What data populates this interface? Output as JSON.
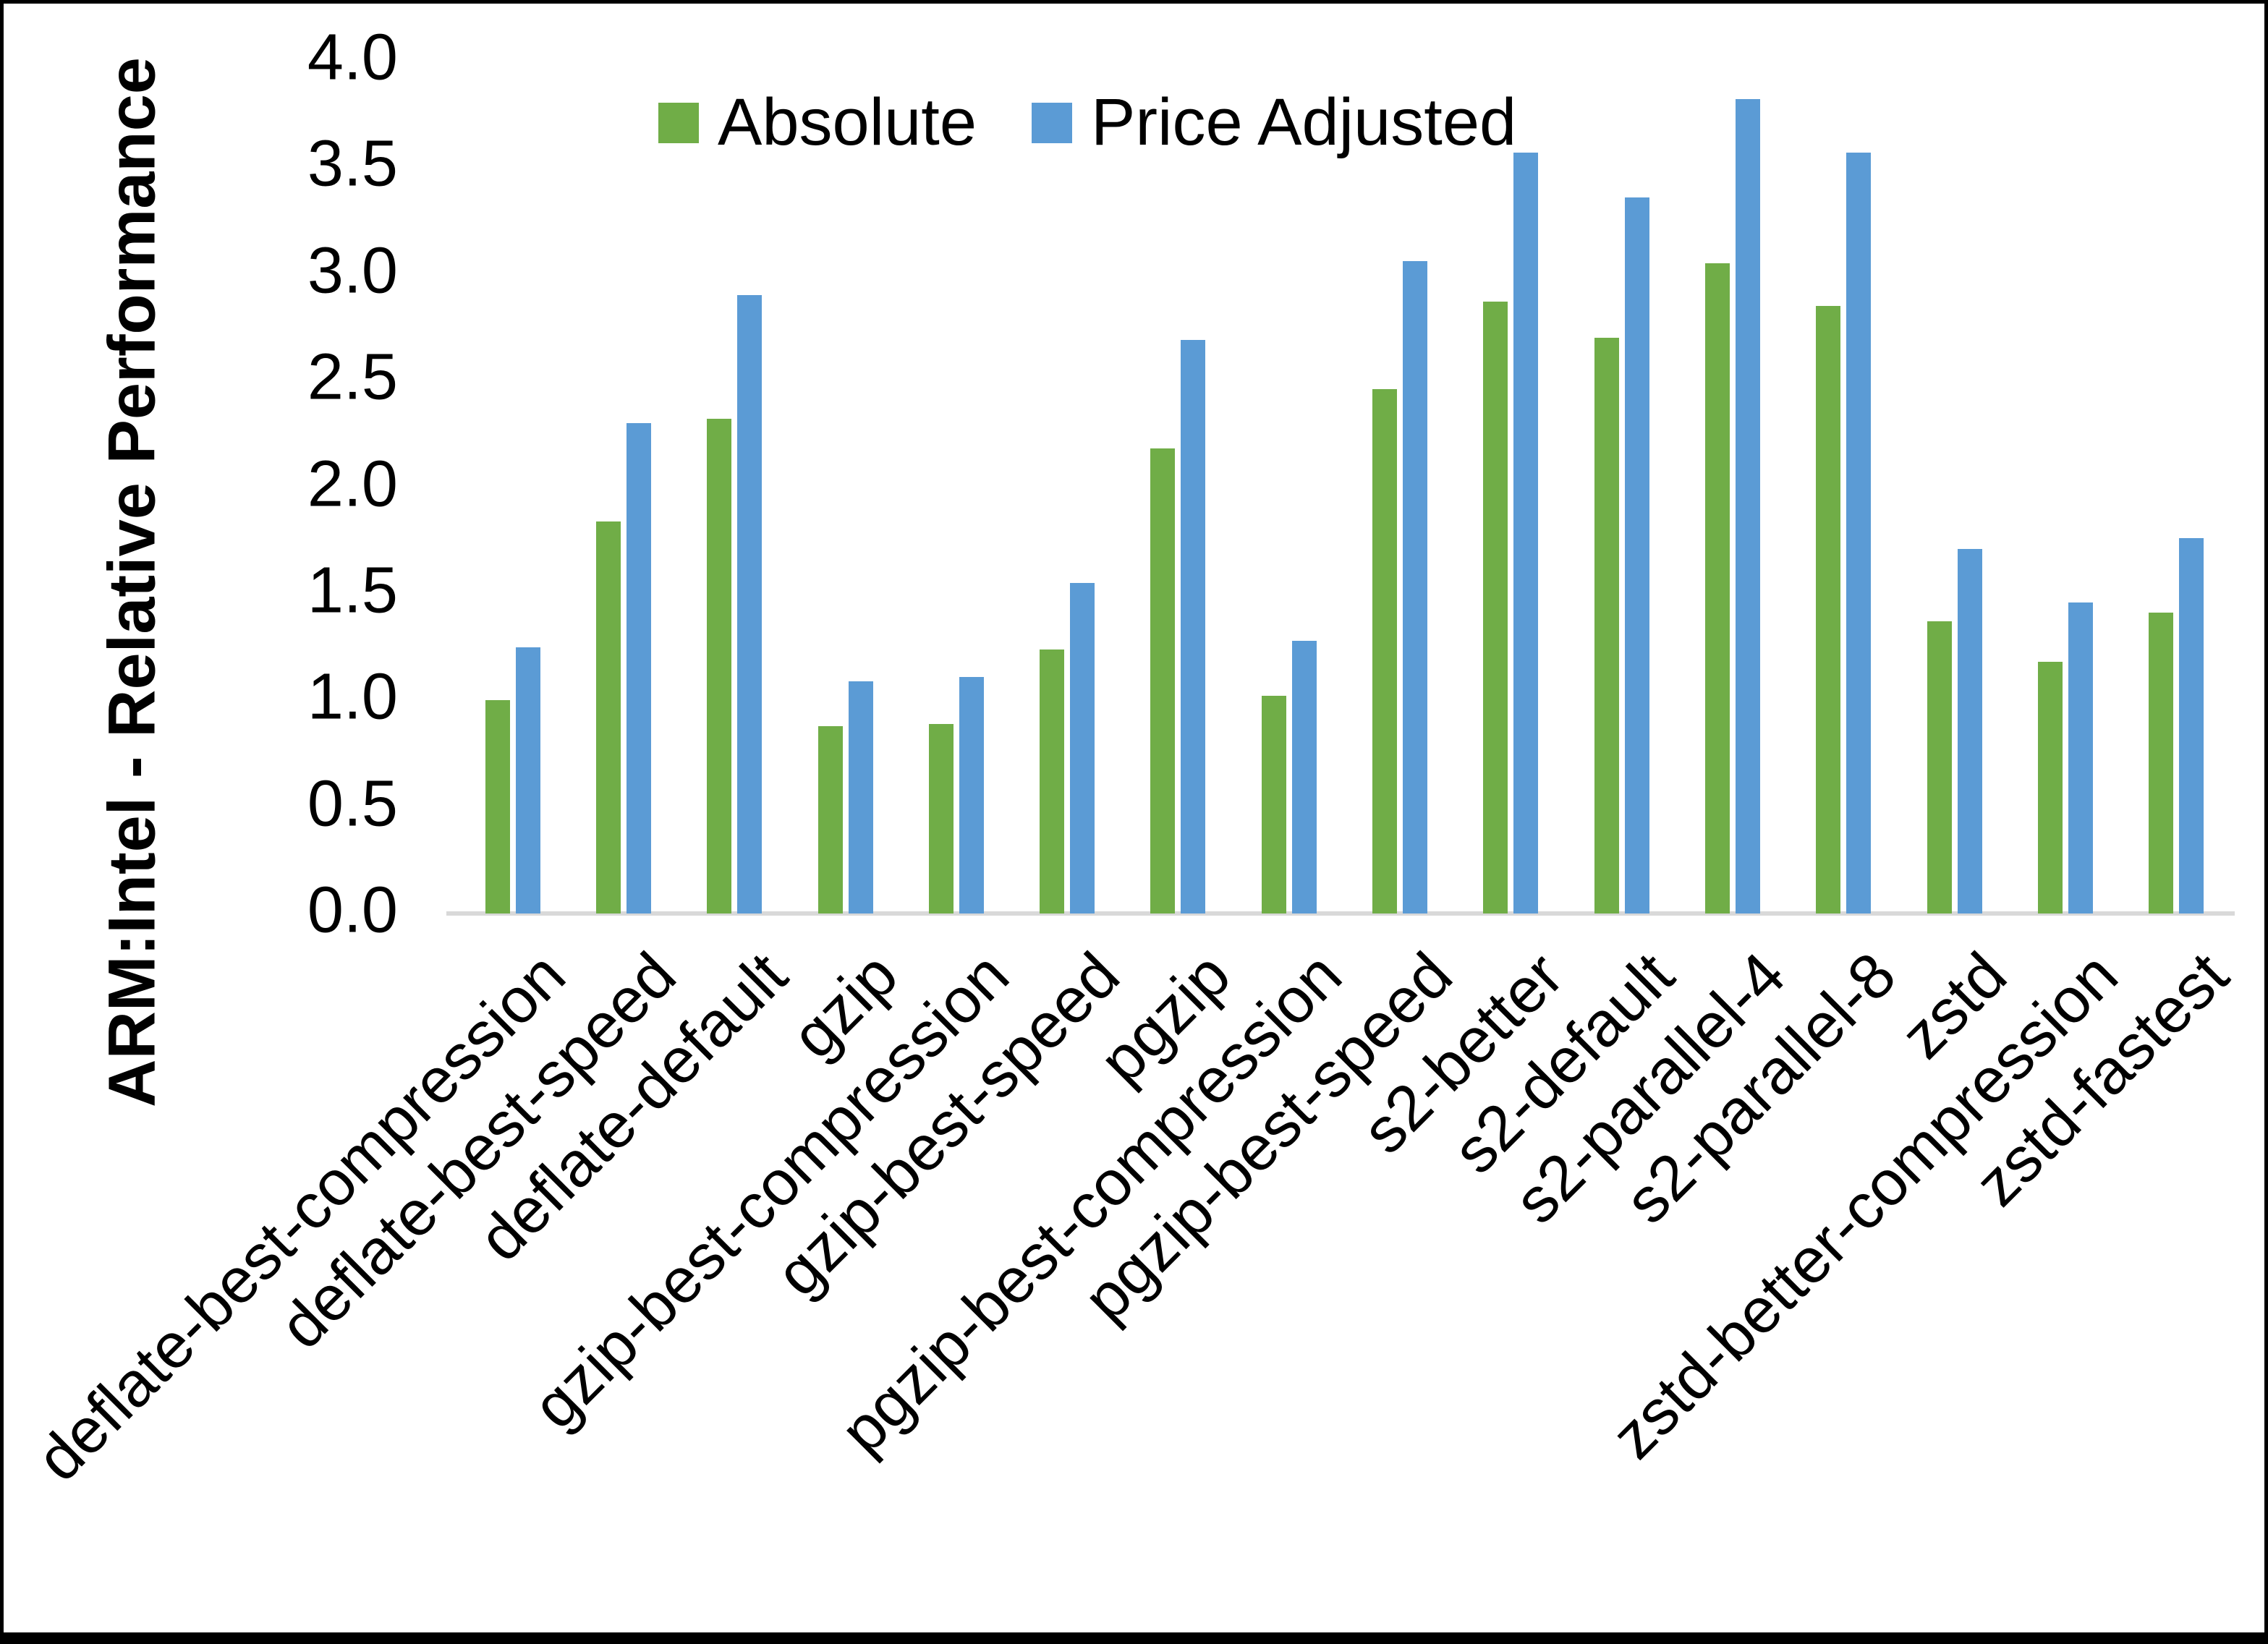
{
  "chart_data": {
    "type": "bar",
    "title": "",
    "xlabel": "",
    "ylabel": "ARM:Intel - Relative Performance",
    "ylim": [
      0.0,
      4.0
    ],
    "ytick_step": 0.5,
    "ytick_labels": [
      "0.0",
      "0.5",
      "1.0",
      "1.5",
      "2.0",
      "2.5",
      "3.0",
      "3.5",
      "4.0"
    ],
    "grid": false,
    "legend_position": "top-center",
    "axis_line_color": "#d9d9d9",
    "text_color": "#000000",
    "background_color": "#ffffff",
    "frame_color": "#000000",
    "categories": [
      "deflate-best-compression",
      "deflate-best-speed",
      "deflate-default",
      "gzip",
      "gzip-best-compression",
      "gzip-best-speed",
      "pgzip",
      "pgzip-best-compression",
      "pgzip-best-speed",
      "s2-better",
      "s2-default",
      "s2-parallel-4",
      "s2-parallel-8",
      "zstd",
      "zstd-better-compression",
      "zstd-fastest"
    ],
    "series": [
      {
        "name": "Absolute",
        "color": "#70ad47",
        "values": [
          1.0,
          1.84,
          2.32,
          0.88,
          0.89,
          1.24,
          2.18,
          1.02,
          2.46,
          2.87,
          2.7,
          3.05,
          2.85,
          1.37,
          1.18,
          1.41
        ]
      },
      {
        "name": "Price Adjusted",
        "color": "#5b9bd5",
        "values": [
          1.25,
          2.3,
          2.9,
          1.09,
          1.11,
          1.55,
          2.69,
          1.28,
          3.06,
          3.57,
          3.36,
          3.82,
          3.57,
          1.71,
          1.46,
          1.76
        ]
      }
    ]
  }
}
